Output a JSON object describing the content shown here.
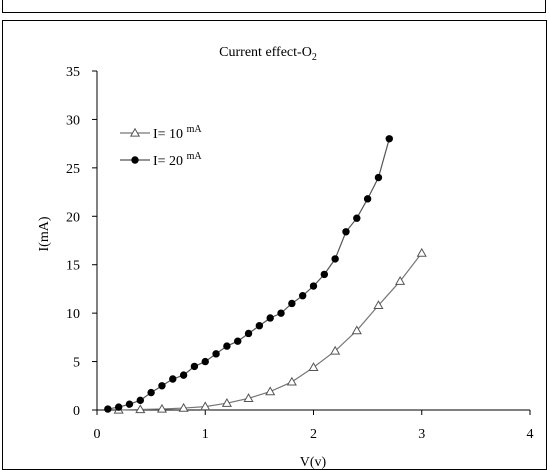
{
  "chart_data": {
    "type": "scatter",
    "title": "Current effect-O",
    "title_subscript": "2",
    "xlabel": "V(v)",
    "ylabel": "I(mA)",
    "xlim": [
      0,
      4
    ],
    "ylim": [
      0,
      35
    ],
    "x_ticks": [
      "0",
      "1",
      "2",
      "3",
      "4"
    ],
    "y_ticks": [
      "0",
      "5",
      "10",
      "15",
      "20",
      "25",
      "30",
      "35"
    ],
    "grid": false,
    "legend_position": "top-left",
    "series": [
      {
        "name": "I= 10",
        "name_unit": "mA",
        "marker": "open-triangle",
        "x": [
          0.2,
          0.4,
          0.6,
          0.8,
          1.0,
          1.2,
          1.4,
          1.6,
          1.8,
          2.0,
          2.2,
          2.4,
          2.6,
          2.8,
          3.0
        ],
        "y": [
          0.0,
          0.05,
          0.1,
          0.2,
          0.35,
          0.7,
          1.2,
          1.9,
          2.9,
          4.4,
          6.1,
          8.2,
          10.8,
          13.3,
          16.2
        ]
      },
      {
        "name": "I= 20",
        "name_unit": "mA",
        "marker": "filled-circle",
        "x": [
          0.1,
          0.2,
          0.3,
          0.4,
          0.5,
          0.6,
          0.7,
          0.8,
          0.9,
          1.0,
          1.1,
          1.2,
          1.3,
          1.4,
          1.5,
          1.6,
          1.7,
          1.8,
          1.9,
          2.0,
          2.1,
          2.2,
          2.3,
          2.4,
          2.5,
          2.6,
          2.7
        ],
        "y": [
          0.1,
          0.3,
          0.6,
          1.0,
          1.8,
          2.5,
          3.2,
          3.6,
          4.5,
          5.0,
          5.8,
          6.6,
          7.1,
          7.9,
          8.7,
          9.5,
          10.0,
          11.0,
          11.8,
          12.8,
          14.0,
          15.6,
          18.4,
          19.8,
          21.8,
          24.0,
          28.0
        ]
      }
    ]
  }
}
